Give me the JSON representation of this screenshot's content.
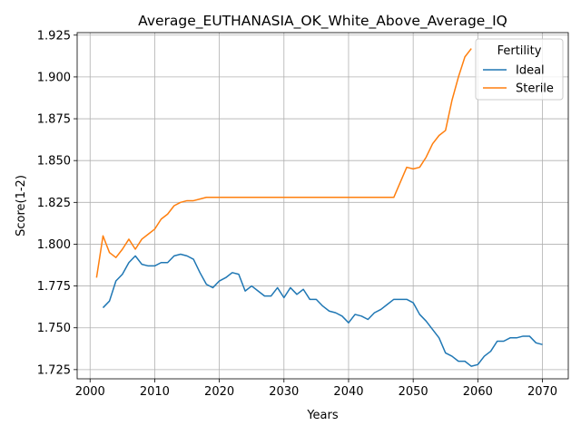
{
  "chart_data": {
    "type": "line",
    "title": "Average_EUTHANASIA_OK_White_Above_Average_IQ",
    "xlabel": "Years",
    "ylabel": "Score(1-2)",
    "xlim": [
      1998,
      2074
    ],
    "ylim": [
      1.7195,
      1.9265
    ],
    "xticks": [
      "2000",
      "2010",
      "2020",
      "2030",
      "2040",
      "2050",
      "2060",
      "2070"
    ],
    "yticks": [
      "1.725",
      "1.750",
      "1.775",
      "1.800",
      "1.825",
      "1.850",
      "1.875",
      "1.900",
      "1.925"
    ],
    "grid": true,
    "legend": {
      "title": "Fertility",
      "position": "top-right"
    },
    "series": [
      {
        "name": "Ideal",
        "color": "#1f77b4",
        "x": [
          2002,
          2003,
          2004,
          2005,
          2006,
          2007,
          2008,
          2009,
          2010,
          2011,
          2012,
          2013,
          2014,
          2015,
          2016,
          2017,
          2018,
          2019,
          2020,
          2021,
          2022,
          2023,
          2024,
          2025,
          2026,
          2027,
          2028,
          2029,
          2030,
          2031,
          2032,
          2033,
          2034,
          2035,
          2036,
          2037,
          2038,
          2039,
          2040,
          2041,
          2042,
          2043,
          2044,
          2045,
          2046,
          2047,
          2048,
          2049,
          2050,
          2051,
          2052,
          2053,
          2054,
          2055,
          2056,
          2057,
          2058,
          2059,
          2060,
          2061,
          2062,
          2063,
          2064,
          2065,
          2066,
          2067,
          2068,
          2069,
          2070
        ],
        "y": [
          1.762,
          1.766,
          1.778,
          1.782,
          1.789,
          1.793,
          1.788,
          1.787,
          1.787,
          1.789,
          1.789,
          1.793,
          1.794,
          1.793,
          1.791,
          1.783,
          1.776,
          1.774,
          1.778,
          1.78,
          1.783,
          1.782,
          1.772,
          1.775,
          1.772,
          1.769,
          1.769,
          1.774,
          1.768,
          1.774,
          1.77,
          1.773,
          1.767,
          1.767,
          1.763,
          1.76,
          1.759,
          1.757,
          1.753,
          1.758,
          1.757,
          1.755,
          1.759,
          1.761,
          1.764,
          1.767,
          1.767,
          1.767,
          1.765,
          1.758,
          1.754,
          1.749,
          1.744,
          1.735,
          1.733,
          1.73,
          1.73,
          1.727,
          1.728,
          1.733,
          1.736,
          1.742,
          1.742,
          1.744,
          1.744,
          1.745,
          1.745,
          1.741,
          1.74
        ]
      },
      {
        "name": "Sterile",
        "color": "#ff7f0e",
        "x": [
          2001,
          2002,
          2003,
          2004,
          2005,
          2006,
          2007,
          2008,
          2009,
          2010,
          2011,
          2012,
          2013,
          2014,
          2015,
          2016,
          2017,
          2018,
          2019,
          2020,
          2021,
          2022,
          2023,
          2024,
          2025,
          2026,
          2027,
          2028,
          2029,
          2030,
          2031,
          2032,
          2033,
          2034,
          2035,
          2036,
          2037,
          2038,
          2039,
          2040,
          2041,
          2042,
          2043,
          2044,
          2045,
          2046,
          2047,
          2048,
          2049,
          2050,
          2051,
          2052,
          2053,
          2054,
          2055,
          2056,
          2057,
          2058,
          2059
        ],
        "y": [
          1.78,
          1.805,
          1.795,
          1.792,
          1.797,
          1.803,
          1.797,
          1.803,
          1.806,
          1.809,
          1.815,
          1.818,
          1.823,
          1.825,
          1.826,
          1.826,
          1.827,
          1.828,
          1.828,
          1.828,
          1.828,
          1.828,
          1.828,
          1.828,
          1.828,
          1.828,
          1.828,
          1.828,
          1.828,
          1.828,
          1.828,
          1.828,
          1.828,
          1.828,
          1.828,
          1.828,
          1.828,
          1.828,
          1.828,
          1.828,
          1.828,
          1.828,
          1.828,
          1.828,
          1.828,
          1.828,
          1.828,
          1.837,
          1.846,
          1.845,
          1.846,
          1.852,
          1.86,
          1.865,
          1.868,
          1.886,
          1.9,
          1.912,
          1.917
        ]
      }
    ]
  }
}
